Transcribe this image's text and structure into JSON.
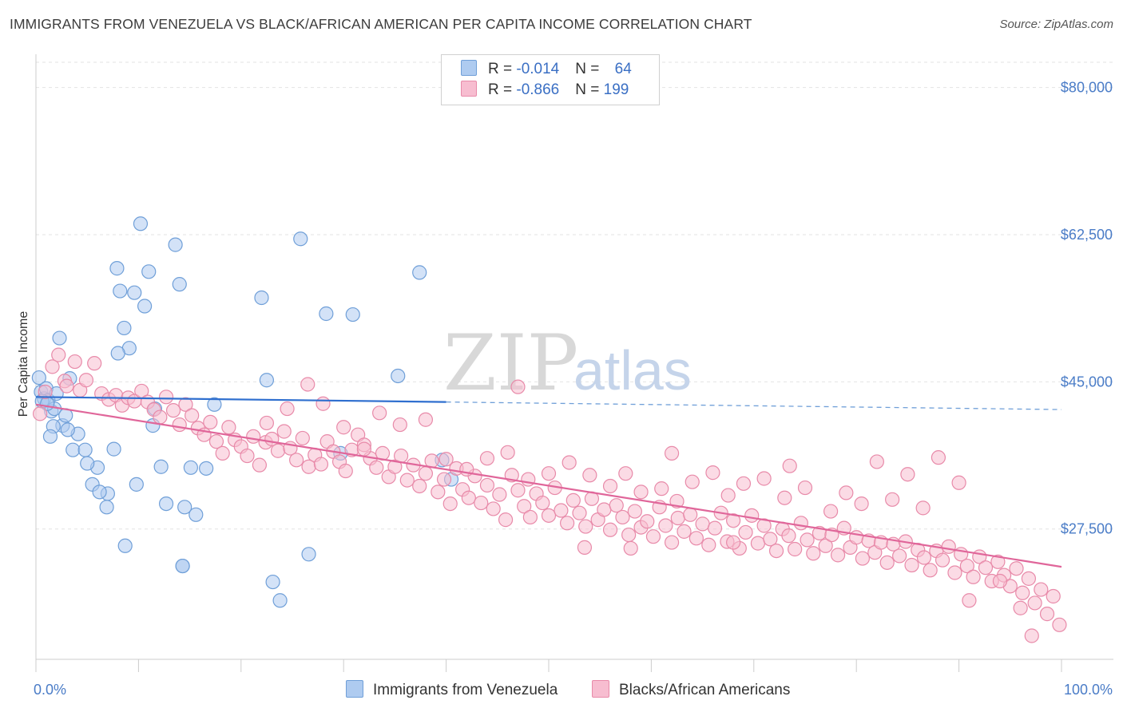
{
  "title": "IMMIGRANTS FROM VENEZUELA VS BLACK/AFRICAN AMERICAN PER CAPITA INCOME CORRELATION CHART",
  "source": "Source: ZipAtlas.com",
  "watermark": {
    "zip": "ZIP",
    "atlas": "atlas"
  },
  "legend": {
    "rows": [
      {
        "r_label": "R = ",
        "r_value": "-0.014",
        "n_label": "N = ",
        "n_value": "64",
        "color": "#aecbf0",
        "border": "#6f9fd8"
      },
      {
        "r_label": "R = ",
        "r_value": "-0.866",
        "n_label": "N = ",
        "n_value": "199",
        "color": "#f7bdd0",
        "border": "#e88aa9"
      }
    ]
  },
  "chart_data": {
    "type": "scatter",
    "title": "IMMIGRANTS FROM VENEZUELA VS BLACK/AFRICAN AMERICAN PER CAPITA INCOME CORRELATION CHART",
    "xlabel": "",
    "ylabel": "Per Capita Income",
    "xlim": [
      0,
      100
    ],
    "ylim": [
      12000,
      83000
    ],
    "x_tick_labels": [
      "0.0%",
      "100.0%"
    ],
    "y_ticks": [
      27500,
      45000,
      62500,
      80000
    ],
    "y_tick_labels": [
      "$27,500",
      "$45,000",
      "$62,500",
      "$80,000"
    ],
    "grid": true,
    "legend_position": "top-center",
    "series": [
      {
        "name": "Immigrants from Venezuela",
        "color": "#6f9fd8",
        "fill": "#aecbf0",
        "trend": {
          "x": [
            0,
            40
          ],
          "y": [
            43200,
            42600
          ],
          "dashed_extension": {
            "x": [
              40,
              100
            ],
            "y": [
              42600,
              41700
            ]
          }
        },
        "points": [
          [
            0.3,
            45500
          ],
          [
            0.5,
            43800
          ],
          [
            0.8,
            43000
          ],
          [
            1.0,
            44200
          ],
          [
            1.2,
            42800
          ],
          [
            1.5,
            41500
          ],
          [
            1.8,
            41800
          ],
          [
            2.0,
            43600
          ],
          [
            0.6,
            42700
          ],
          [
            1.1,
            42400
          ],
          [
            2.3,
            50200
          ],
          [
            2.6,
            39800
          ],
          [
            2.9,
            41000
          ],
          [
            3.3,
            45400
          ],
          [
            3.6,
            36900
          ],
          [
            4.1,
            38800
          ],
          [
            3.1,
            39300
          ],
          [
            1.7,
            39700
          ],
          [
            1.4,
            38500
          ],
          [
            4.8,
            36900
          ],
          [
            5.5,
            32800
          ],
          [
            6.0,
            34800
          ],
          [
            7.0,
            31700
          ],
          [
            7.6,
            37000
          ],
          [
            7.9,
            58500
          ],
          [
            8.2,
            55800
          ],
          [
            8.6,
            51400
          ],
          [
            9.1,
            49000
          ],
          [
            8.0,
            48400
          ],
          [
            9.6,
            55600
          ],
          [
            10.2,
            63800
          ],
          [
            10.6,
            54000
          ],
          [
            11.0,
            58100
          ],
          [
            11.4,
            39800
          ],
          [
            11.6,
            41800
          ],
          [
            12.2,
            34900
          ],
          [
            12.7,
            30500
          ],
          [
            13.6,
            61300
          ],
          [
            14.0,
            56600
          ],
          [
            14.5,
            30100
          ],
          [
            15.1,
            34800
          ],
          [
            15.6,
            29200
          ],
          [
            16.6,
            34700
          ],
          [
            17.4,
            42300
          ],
          [
            14.3,
            23100
          ],
          [
            8.7,
            25500
          ],
          [
            14.3,
            23100
          ],
          [
            22.0,
            55000
          ],
          [
            22.5,
            45200
          ],
          [
            23.1,
            21200
          ],
          [
            23.8,
            19000
          ],
          [
            25.8,
            62000
          ],
          [
            26.6,
            24500
          ],
          [
            28.3,
            53100
          ],
          [
            29.7,
            36500
          ],
          [
            30.9,
            53000
          ],
          [
            5.0,
            35300
          ],
          [
            6.2,
            31900
          ],
          [
            6.9,
            30100
          ],
          [
            9.8,
            32800
          ],
          [
            35.3,
            45700
          ],
          [
            37.4,
            58000
          ],
          [
            39.6,
            35700
          ],
          [
            40.5,
            33400
          ]
        ]
      },
      {
        "name": "Blacks/African Americans",
        "color": "#e88aa9",
        "fill": "#f7bdd0",
        "trend": {
          "x": [
            0,
            100
          ],
          "y": [
            42300,
            23000
          ]
        },
        "points": [
          [
            0.4,
            41200
          ],
          [
            0.9,
            43800
          ],
          [
            1.6,
            46800
          ],
          [
            2.2,
            48200
          ],
          [
            2.8,
            45100
          ],
          [
            3.0,
            44500
          ],
          [
            3.8,
            47400
          ],
          [
            4.3,
            44000
          ],
          [
            4.9,
            45200
          ],
          [
            5.7,
            47200
          ],
          [
            6.4,
            43600
          ],
          [
            7.1,
            42900
          ],
          [
            7.8,
            43400
          ],
          [
            8.4,
            42200
          ],
          [
            9.0,
            43100
          ],
          [
            9.6,
            42700
          ],
          [
            10.3,
            43900
          ],
          [
            10.9,
            42600
          ],
          [
            11.5,
            41700
          ],
          [
            12.1,
            40800
          ],
          [
            12.7,
            43200
          ],
          [
            13.4,
            41600
          ],
          [
            14.0,
            39900
          ],
          [
            14.6,
            42300
          ],
          [
            15.2,
            41000
          ],
          [
            15.8,
            39500
          ],
          [
            16.4,
            38700
          ],
          [
            17.0,
            40200
          ],
          [
            17.6,
            37900
          ],
          [
            18.2,
            36500
          ],
          [
            18.8,
            39600
          ],
          [
            19.4,
            38100
          ],
          [
            20.0,
            37300
          ],
          [
            20.6,
            36200
          ],
          [
            21.2,
            38500
          ],
          [
            21.8,
            35100
          ],
          [
            22.4,
            37800
          ],
          [
            23.0,
            38200
          ],
          [
            23.6,
            36800
          ],
          [
            24.2,
            39100
          ],
          [
            24.8,
            37100
          ],
          [
            25.4,
            35700
          ],
          [
            26.0,
            38300
          ],
          [
            26.6,
            34900
          ],
          [
            27.2,
            36300
          ],
          [
            27.8,
            35200
          ],
          [
            28.4,
            37900
          ],
          [
            29.0,
            36700
          ],
          [
            29.6,
            35500
          ],
          [
            30.2,
            34400
          ],
          [
            30.8,
            36900
          ],
          [
            31.4,
            38700
          ],
          [
            32.0,
            37500
          ],
          [
            32.6,
            35900
          ],
          [
            33.2,
            34800
          ],
          [
            33.8,
            36500
          ],
          [
            34.4,
            33700
          ],
          [
            35.0,
            34900
          ],
          [
            35.6,
            36200
          ],
          [
            36.2,
            33300
          ],
          [
            36.8,
            35100
          ],
          [
            37.4,
            32600
          ],
          [
            38.0,
            34100
          ],
          [
            38.6,
            35600
          ],
          [
            39.2,
            31900
          ],
          [
            39.8,
            33400
          ],
          [
            40.4,
            30500
          ],
          [
            41.0,
            34700
          ],
          [
            41.6,
            32200
          ],
          [
            42.2,
            31200
          ],
          [
            42.8,
            33800
          ],
          [
            43.4,
            30600
          ],
          [
            44.0,
            32700
          ],
          [
            44.6,
            29900
          ],
          [
            45.2,
            31600
          ],
          [
            45.8,
            28600
          ],
          [
            46.4,
            33900
          ],
          [
            47.0,
            32100
          ],
          [
            47.6,
            30200
          ],
          [
            48.2,
            28900
          ],
          [
            48.8,
            31700
          ],
          [
            49.4,
            30600
          ],
          [
            50.0,
            29100
          ],
          [
            50.6,
            32400
          ],
          [
            51.2,
            29700
          ],
          [
            51.8,
            28200
          ],
          [
            52.4,
            30900
          ],
          [
            53.0,
            29400
          ],
          [
            53.6,
            27800
          ],
          [
            54.2,
            31100
          ],
          [
            54.8,
            28600
          ],
          [
            55.4,
            29800
          ],
          [
            56.0,
            27400
          ],
          [
            56.6,
            30300
          ],
          [
            57.2,
            28900
          ],
          [
            57.8,
            26800
          ],
          [
            58.4,
            29600
          ],
          [
            59.0,
            27700
          ],
          [
            59.6,
            28400
          ],
          [
            60.2,
            26600
          ],
          [
            60.8,
            30100
          ],
          [
            61.4,
            27900
          ],
          [
            62.0,
            25900
          ],
          [
            62.6,
            28800
          ],
          [
            63.2,
            27200
          ],
          [
            63.8,
            29200
          ],
          [
            64.4,
            26400
          ],
          [
            65.0,
            28100
          ],
          [
            65.6,
            25600
          ],
          [
            66.2,
            27600
          ],
          [
            66.8,
            29400
          ],
          [
            67.4,
            26000
          ],
          [
            68.0,
            28500
          ],
          [
            68.6,
            25200
          ],
          [
            69.2,
            27100
          ],
          [
            69.8,
            29100
          ],
          [
            70.4,
            25800
          ],
          [
            71.0,
            27900
          ],
          [
            71.6,
            26300
          ],
          [
            72.2,
            24900
          ],
          [
            72.8,
            27500
          ],
          [
            73.4,
            26700
          ],
          [
            74.0,
            25100
          ],
          [
            74.6,
            28200
          ],
          [
            75.2,
            26200
          ],
          [
            75.8,
            24600
          ],
          [
            76.4,
            27000
          ],
          [
            77.0,
            25500
          ],
          [
            77.6,
            26800
          ],
          [
            78.2,
            24400
          ],
          [
            78.8,
            27600
          ],
          [
            79.4,
            25300
          ],
          [
            80.0,
            26500
          ],
          [
            80.6,
            24000
          ],
          [
            81.2,
            26100
          ],
          [
            81.8,
            24700
          ],
          [
            82.4,
            25900
          ],
          [
            83.0,
            23500
          ],
          [
            83.6,
            25700
          ],
          [
            84.2,
            24300
          ],
          [
            84.8,
            26000
          ],
          [
            85.4,
            23200
          ],
          [
            86.0,
            25000
          ],
          [
            86.6,
            24100
          ],
          [
            87.2,
            22600
          ],
          [
            87.8,
            24900
          ],
          [
            88.4,
            23800
          ],
          [
            89.0,
            25400
          ],
          [
            89.6,
            22300
          ],
          [
            90.2,
            24500
          ],
          [
            90.8,
            23100
          ],
          [
            91.4,
            21800
          ],
          [
            92.0,
            24200
          ],
          [
            92.6,
            22900
          ],
          [
            93.2,
            21300
          ],
          [
            93.8,
            23600
          ],
          [
            94.4,
            22000
          ],
          [
            95.0,
            20700
          ],
          [
            95.6,
            22800
          ],
          [
            96.2,
            19900
          ],
          [
            96.8,
            21600
          ],
          [
            97.4,
            18700
          ],
          [
            98.0,
            20300
          ],
          [
            98.6,
            17400
          ],
          [
            99.2,
            19500
          ],
          [
            99.8,
            16100
          ],
          [
            97.1,
            14800
          ],
          [
            96.0,
            18100
          ],
          [
            94.0,
            21300
          ],
          [
            91.0,
            19000
          ],
          [
            90.0,
            33000
          ],
          [
            88.0,
            36000
          ],
          [
            86.5,
            30000
          ],
          [
            85.0,
            34000
          ],
          [
            83.5,
            31000
          ],
          [
            82.0,
            35500
          ],
          [
            80.5,
            30500
          ],
          [
            79.0,
            31800
          ],
          [
            77.5,
            29600
          ],
          [
            75.0,
            32400
          ],
          [
            73.0,
            31200
          ],
          [
            71.0,
            33500
          ],
          [
            69.0,
            32900
          ],
          [
            67.5,
            31500
          ],
          [
            66.0,
            34200
          ],
          [
            64.0,
            33100
          ],
          [
            62.5,
            30800
          ],
          [
            61.0,
            32300
          ],
          [
            59.0,
            31900
          ],
          [
            57.5,
            34100
          ],
          [
            56.0,
            32600
          ],
          [
            54.0,
            33900
          ],
          [
            52.0,
            35400
          ],
          [
            50.0,
            34100
          ],
          [
            48.0,
            33400
          ],
          [
            46.0,
            36600
          ],
          [
            44.0,
            35900
          ],
          [
            42.0,
            34600
          ],
          [
            40.0,
            35800
          ],
          [
            38.0,
            40500
          ],
          [
            35.5,
            39900
          ],
          [
            33.5,
            41300
          ],
          [
            32.0,
            37000
          ],
          [
            30.0,
            39600
          ],
          [
            28.0,
            42400
          ],
          [
            26.5,
            44700
          ],
          [
            24.5,
            41800
          ],
          [
            22.5,
            40100
          ],
          [
            47.0,
            44400
          ],
          [
            62.0,
            36500
          ],
          [
            68.0,
            25900
          ],
          [
            73.5,
            35000
          ],
          [
            58.0,
            25200
          ],
          [
            53.5,
            25300
          ]
        ]
      }
    ]
  },
  "bottom_legend": [
    {
      "label": "Immigrants from Venezuela",
      "color": "#aecbf0",
      "border": "#6f9fd8"
    },
    {
      "label": "Blacks/African Americans",
      "color": "#f7bdd0",
      "border": "#e88aa9"
    }
  ]
}
